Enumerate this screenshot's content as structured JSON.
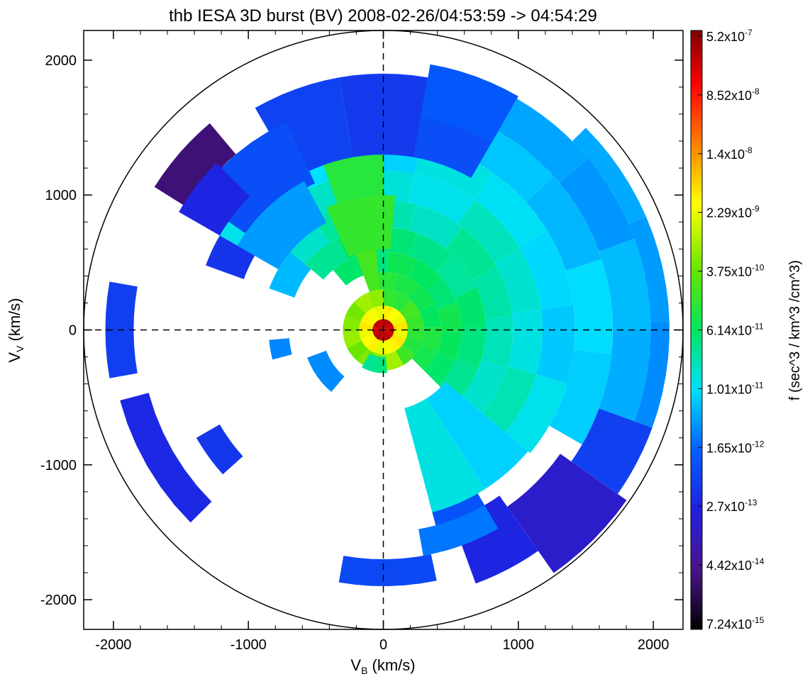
{
  "chart_data": {
    "type": "heatmap",
    "title": "thb IESA 3D burst (BV) 2008-02-26/04:53:59 -> 04:54:29",
    "xlabel": {
      "main": "V",
      "sub": "B",
      "unit": " (km/s)"
    },
    "ylabel": {
      "main": "V",
      "sub": "V",
      "unit": " (km/s)"
    },
    "xlim": [
      -2220,
      2220
    ],
    "ylim": [
      -2220,
      2220
    ],
    "xticks": [
      -2000,
      -1000,
      0,
      1000,
      2000
    ],
    "yticks": [
      -2000,
      -1000,
      0,
      1000,
      2000
    ],
    "xtick_labels": [
      "-2000",
      "-1000",
      "0",
      "1000",
      "2000"
    ],
    "ytick_labels": [
      "-2000",
      "-1000",
      "0",
      "1000",
      "2000"
    ],
    "boundary_circle_radius": 2220,
    "axis_lines": "dashed zero lines",
    "colorbar": {
      "label": "f (sec^3 / km^3 /cm^3)",
      "scale": "log",
      "tick_labels": [
        {
          "mant": "5.2x10",
          "exp": "-7"
        },
        {
          "mant": "8.52x10",
          "exp": "-8"
        },
        {
          "mant": "1.4x10",
          "exp": "-8"
        },
        {
          "mant": "2.29x10",
          "exp": "-9"
        },
        {
          "mant": "3.75x10",
          "exp": "-10"
        },
        {
          "mant": "6.14x10",
          "exp": "-11"
        },
        {
          "mant": "1.01x10",
          "exp": "-11"
        },
        {
          "mant": "1.65x10",
          "exp": "-12"
        },
        {
          "mant": "2.7x10",
          "exp": "-13"
        },
        {
          "mant": "4.42x10",
          "exp": "-14"
        },
        {
          "mant": "7.24x10",
          "exp": "-15"
        }
      ],
      "colors": [
        "#7f0000",
        "#ff0000",
        "#ff8000",
        "#ffff00",
        "#66e600",
        "#00e660",
        "#00e0ff",
        "#0060ff",
        "#2020e0",
        "#4a148c",
        "#000000"
      ]
    },
    "sectors": [
      {
        "r": [
          0,
          80
        ],
        "a": [
          0,
          360
        ],
        "level": 0.95
      },
      {
        "r": [
          80,
          180
        ],
        "a": [
          0,
          360
        ],
        "level": 0.7
      },
      {
        "r": [
          180,
          300
        ],
        "a": [
          -60,
          90
        ],
        "level": 0.55
      },
      {
        "r": [
          180,
          300
        ],
        "a": [
          90,
          300
        ],
        "level": 0.62
      },
      {
        "r": [
          300,
          430
        ],
        "a": [
          -45,
          100
        ],
        "level": 0.52
      },
      {
        "r": [
          430,
          580
        ],
        "a": [
          -45,
          130
        ],
        "level": 0.5
      },
      {
        "r": [
          580,
          760
        ],
        "a": [
          -45,
          140
        ],
        "level": 0.48
      },
      {
        "r": [
          760,
          960
        ],
        "a": [
          -40,
          145
        ],
        "level": 0.45
      },
      {
        "r": [
          960,
          1180
        ],
        "a": [
          -40,
          150
        ],
        "level": 0.43
      },
      {
        "r": [
          1180,
          1420
        ],
        "a": [
          -40,
          150
        ],
        "level": 0.4
      },
      {
        "r": [
          1420,
          1700
        ],
        "a": [
          -30,
          90
        ],
        "level": 0.38
      },
      {
        "r": [
          1700,
          1980
        ],
        "a": [
          -20,
          60
        ],
        "level": 0.36
      },
      {
        "r": [
          1980,
          2120
        ],
        "a": [
          -20,
          45
        ],
        "level": 0.34
      },
      {
        "r": [
          300,
          600
        ],
        "a": [
          95,
          110
        ],
        "level": 0.58
      },
      {
        "r": [
          600,
          1000
        ],
        "a": [
          85,
          115
        ],
        "level": 0.57
      },
      {
        "r": [
          1000,
          1300
        ],
        "a": [
          90,
          110
        ],
        "level": 0.52
      },
      {
        "r": [
          1300,
          1900
        ],
        "a": [
          60,
          120
        ],
        "level": 0.26
      },
      {
        "r": [
          1600,
          2000
        ],
        "a": [
          60,
          80
        ],
        "level": 0.28
      },
      {
        "r": [
          1700,
          2120
        ],
        "a": [
          -35,
          -20
        ],
        "level": 0.25
      },
      {
        "r": [
          1600,
          2200
        ],
        "a": [
          -55,
          -35
        ],
        "level": 0.18
      },
      {
        "r": [
          1500,
          2000
        ],
        "a": [
          -70,
          -55
        ],
        "level": 0.22
      },
      {
        "r": [
          1300,
          1700
        ],
        "a": [
          -75,
          -60
        ],
        "level": 0.3
      },
      {
        "r": [
          600,
          1400
        ],
        "a": [
          -75,
          -40
        ],
        "level": 0.4
      },
      {
        "r": [
          1200,
          1700
        ],
        "a": [
          115,
          145
        ],
        "level": 0.26
      },
      {
        "r": [
          900,
          1250
        ],
        "a": [
          118,
          150
        ],
        "level": 0.34
      },
      {
        "r": [
          700,
          900
        ],
        "a": [
          140,
          160
        ],
        "level": 0.37
      },
      {
        "r": [
          1700,
          2000
        ],
        "a": [
          130,
          148
        ],
        "level": 0.09
      },
      {
        "r": [
          1400,
          1750
        ],
        "a": [
          135,
          150
        ],
        "level": 0.22
      },
      {
        "r": [
          1100,
          1400
        ],
        "a": [
          150,
          160
        ],
        "level": 0.25
      },
      {
        "r": [
          1850,
          2060
        ],
        "a": [
          170,
          190
        ],
        "level": 0.23
      },
      {
        "r": [
          1800,
          2020
        ],
        "a": [
          195,
          225
        ],
        "level": 0.2
      },
      {
        "r": [
          1400,
          1600
        ],
        "a": [
          210,
          222
        ],
        "level": 0.23
      },
      {
        "r": [
          700,
          850
        ],
        "a": [
          185,
          195
        ],
        "level": 0.33
      },
      {
        "r": [
          450,
          600
        ],
        "a": [
          200,
          230
        ],
        "level": 0.34
      },
      {
        "r": [
          200,
          320
        ],
        "a": [
          240,
          275
        ],
        "level": 0.48
      },
      {
        "r": [
          1700,
          1900
        ],
        "a": [
          260,
          282
        ],
        "level": 0.28
      },
      {
        "r": [
          1500,
          1700
        ],
        "a": [
          280,
          300
        ],
        "level": 0.3
      }
    ]
  }
}
